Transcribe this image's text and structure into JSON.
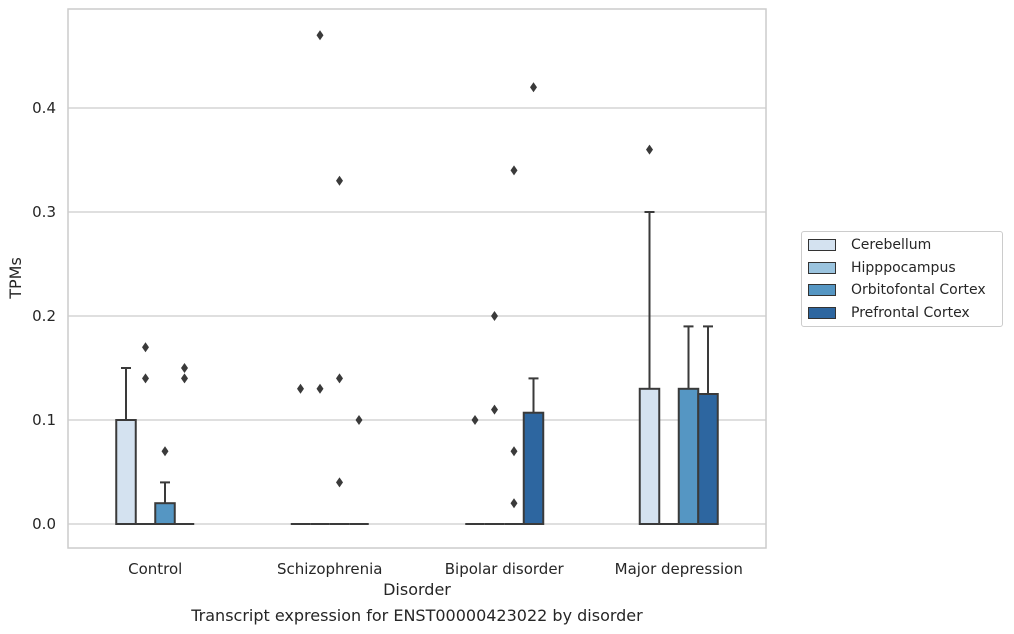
{
  "caption": "Transcript expression for ENST00000423022 by disorder",
  "chart_data": {
    "type": "box",
    "xlabel": "Disorder",
    "ylabel": "TPMs",
    "ylim": [
      -0.023,
      0.49
    ],
    "yticks": [
      0.0,
      0.1,
      0.2,
      0.3,
      0.4
    ],
    "ytick_labels": [
      "0.0",
      "0.1",
      "0.2",
      "0.3",
      "0.4"
    ],
    "grid": "horizontal",
    "legend_placement": "right",
    "categories": [
      "Control",
      "Schizophrenia",
      "Bipolar disorder",
      "Major depression"
    ],
    "series": [
      {
        "name": "Cerebellum",
        "color": "#d4e2f0",
        "boxes": [
          {
            "q1": 0,
            "median": 0,
            "q3": 0.1,
            "whisker_low": 0,
            "whisker_high": 0.15,
            "outliers": []
          },
          {
            "q1": 0,
            "median": 0,
            "q3": 0,
            "whisker_low": 0,
            "whisker_high": 0,
            "outliers": [
              0.13
            ]
          },
          {
            "q1": 0,
            "median": 0,
            "q3": 0,
            "whisker_low": 0,
            "whisker_high": 0,
            "outliers": [
              0.1
            ]
          },
          {
            "q1": 0,
            "median": 0,
            "q3": 0.13,
            "whisker_low": 0,
            "whisker_high": 0.3,
            "outliers": [
              0.36
            ]
          }
        ]
      },
      {
        "name": "Hipppocampus",
        "color": "#9bc4df",
        "boxes": [
          {
            "q1": 0,
            "median": 0,
            "q3": 0,
            "whisker_low": 0,
            "whisker_high": 0,
            "outliers": [
              0.14,
              0.17
            ]
          },
          {
            "q1": 0,
            "median": 0,
            "q3": 0,
            "whisker_low": 0,
            "whisker_high": 0,
            "outliers": [
              0.13,
              0.47
            ]
          },
          {
            "q1": 0,
            "median": 0,
            "q3": 0,
            "whisker_low": 0,
            "whisker_high": 0,
            "outliers": [
              0.11,
              0.2
            ]
          },
          {
            "q1": 0,
            "median": 0,
            "q3": 0,
            "whisker_low": 0,
            "whisker_high": 0,
            "outliers": []
          }
        ]
      },
      {
        "name": "Orbitofontal Cortex",
        "color": "#5596c3",
        "boxes": [
          {
            "q1": 0,
            "median": 0,
            "q3": 0.02,
            "whisker_low": 0,
            "whisker_high": 0.04,
            "outliers": [
              0.07
            ]
          },
          {
            "q1": 0,
            "median": 0,
            "q3": 0,
            "whisker_low": 0,
            "whisker_high": 0,
            "outliers": [
              0.04,
              0.14,
              0.33
            ]
          },
          {
            "q1": 0,
            "median": 0,
            "q3": 0,
            "whisker_low": 0,
            "whisker_high": 0,
            "outliers": [
              0.02,
              0.07,
              0.34
            ]
          },
          {
            "q1": 0,
            "median": 0,
            "q3": 0.13,
            "whisker_low": 0,
            "whisker_high": 0.19,
            "outliers": []
          }
        ]
      },
      {
        "name": "Prefrontal Cortex",
        "color": "#2d66a0",
        "boxes": [
          {
            "q1": 0,
            "median": 0,
            "q3": 0,
            "whisker_low": 0,
            "whisker_high": 0,
            "outliers": [
              0.14,
              0.15
            ]
          },
          {
            "q1": 0,
            "median": 0,
            "q3": 0,
            "whisker_low": 0,
            "whisker_high": 0,
            "outliers": [
              0.1
            ]
          },
          {
            "q1": 0,
            "median": 0,
            "q3": 0.107,
            "whisker_low": 0,
            "whisker_high": 0.14,
            "outliers": [
              0.42
            ]
          },
          {
            "q1": 0,
            "median": 0,
            "q3": 0.125,
            "whisker_low": 0,
            "whisker_high": 0.19,
            "outliers": []
          }
        ]
      }
    ]
  }
}
